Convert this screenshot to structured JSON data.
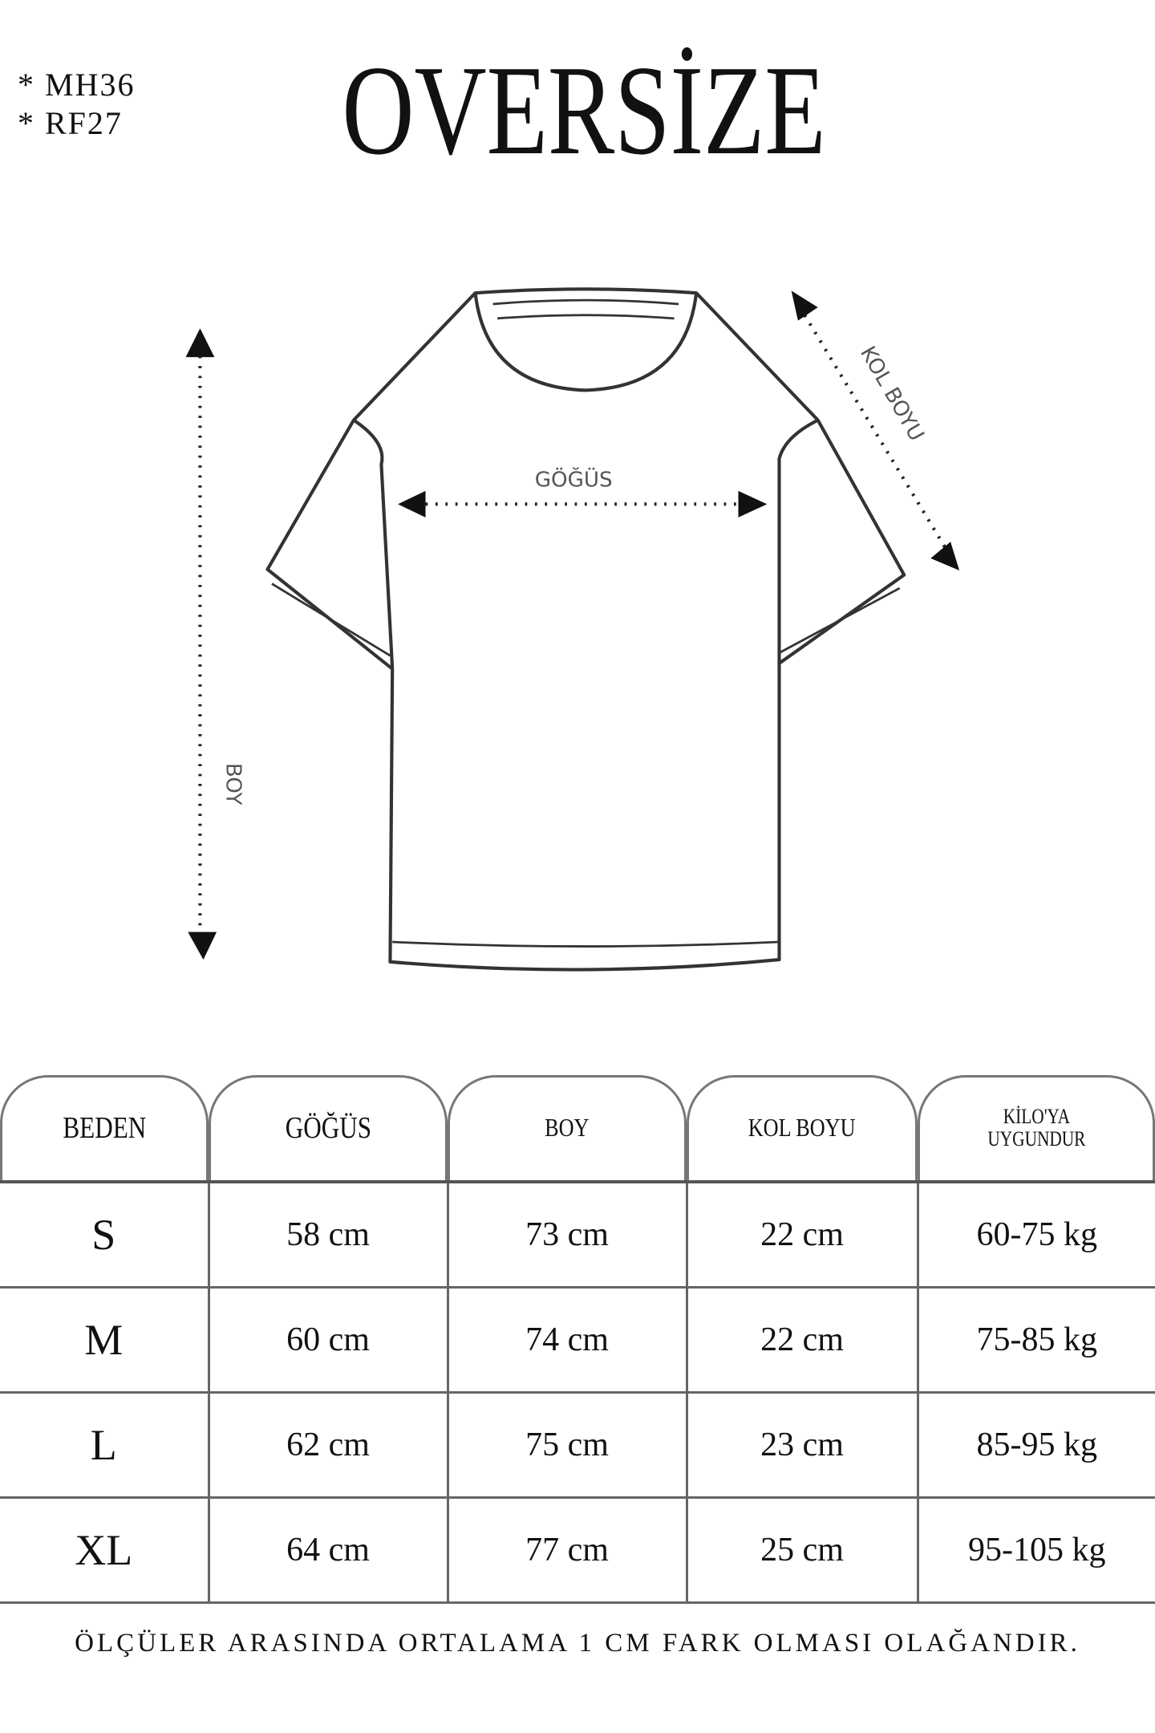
{
  "codes": [
    "*  MH36",
    "*  RF27"
  ],
  "title": "OVERSİZE",
  "diagram": {
    "chest_label": "GÖĞÜS",
    "sleeve_label": "KOL BOYU",
    "length_label": "BOY"
  },
  "table": {
    "headers": [
      "BEDEN",
      "GÖĞÜS",
      "BOY",
      "KOL BOYU",
      "KİLO'YA",
      "UYGUNDUR"
    ],
    "rows": [
      [
        "S",
        "58 cm",
        "73 cm",
        "22  cm",
        "60-75 kg"
      ],
      [
        "M",
        "60 cm",
        "74 cm",
        "22 cm",
        "75-85 kg"
      ],
      [
        "L",
        "62 cm",
        "75 cm",
        "23 cm",
        "85-95 kg"
      ],
      [
        "XL",
        "64 cm",
        "77 cm",
        "25 cm",
        "95-105 kg"
      ]
    ]
  },
  "footer": "ÖLÇÜLER ARASINDA ORTALAMA 1 CM FARK OLMASI OLAĞANDIR."
}
